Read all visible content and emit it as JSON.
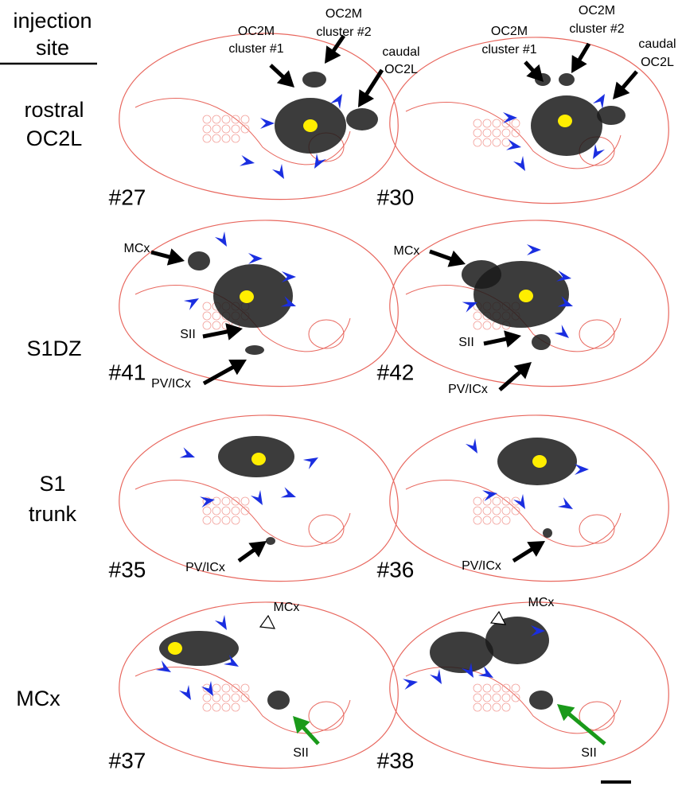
{
  "header": {
    "lines": [
      "injection",
      "site"
    ]
  },
  "rows": [
    {
      "label": [
        "rostral",
        "OC2L"
      ],
      "panels": [
        {
          "number": "#27",
          "annotations": [
            [
              "OC2M",
              "cluster #1"
            ],
            [
              "OC2M",
              "cluster #2"
            ],
            [
              "caudal",
              "OC2L"
            ]
          ]
        },
        {
          "number": "#30",
          "annotations": [
            [
              "OC2M",
              "cluster #1"
            ],
            [
              "OC2M",
              "cluster #2"
            ],
            [
              "caudal",
              "OC2L"
            ]
          ]
        }
      ]
    },
    {
      "label": [
        "S1DZ"
      ],
      "panels": [
        {
          "number": "#41",
          "annotations": [
            [
              "MCx"
            ],
            [
              "SII"
            ],
            [
              "PV/ICx"
            ]
          ]
        },
        {
          "number": "#42",
          "annotations": [
            [
              "MCx"
            ],
            [
              "SII"
            ],
            [
              "PV/ICx"
            ]
          ]
        }
      ]
    },
    {
      "label": [
        "S1",
        "trunk"
      ],
      "panels": [
        {
          "number": "#35",
          "annotations": [
            [
              "PV/ICx"
            ]
          ]
        },
        {
          "number": "#36",
          "annotations": [
            [
              "PV/ICx"
            ]
          ]
        }
      ]
    },
    {
      "label": [
        "MCx"
      ],
      "panels": [
        {
          "number": "#37",
          "annotations": [
            [
              "MCx"
            ],
            [
              "SII"
            ]
          ]
        },
        {
          "number": "#38",
          "annotations": [
            [
              "MCx"
            ],
            [
              "SII"
            ]
          ]
        }
      ]
    }
  ]
}
